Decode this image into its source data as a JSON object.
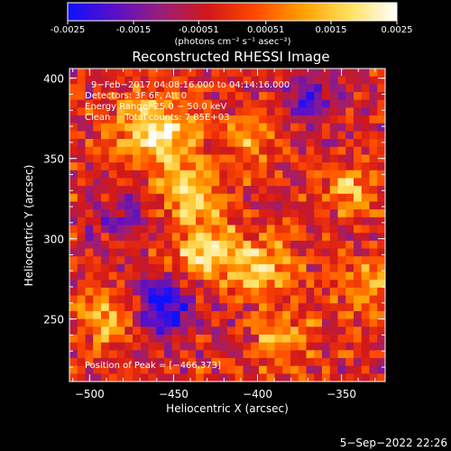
{
  "colorbar": {
    "ticks": [
      "-0.0025",
      "-0.0015",
      "-0.00051",
      "0.00051",
      "0.0015",
      "0.0025"
    ],
    "tick_values": [
      -0.0025,
      -0.0015,
      -0.00051,
      0.00051,
      0.0015,
      0.0025
    ],
    "range": [
      -0.0025,
      0.0025
    ],
    "units_label": "(photons cm⁻² s⁻¹ asec⁻²)",
    "colors": [
      "#1010ff",
      "#5a10c8",
      "#9a1e78",
      "#d21818",
      "#ff4a00",
      "#ffa000",
      "#ffe060",
      "#ffffff"
    ]
  },
  "chart_data": {
    "type": "heatmap",
    "title": "Reconstructed RHESSI Image",
    "xlabel": "Heliocentric X (arcsec)",
    "ylabel": "Heliocentric Y (arcsec)",
    "x_ticks": [
      "−500",
      "−450",
      "−400",
      "−350"
    ],
    "x_tick_values": [
      -500,
      -450,
      -400,
      -350
    ],
    "y_ticks": [
      "250",
      "300",
      "350",
      "400"
    ],
    "y_tick_values": [
      250,
      300,
      350,
      400
    ],
    "xlim": [
      -512,
      -324
    ],
    "ylim": [
      211,
      406
    ],
    "annotations": [
      "9−Feb−2017 04:08:16.000 to 04:14:16.000",
      "Detectors: 3F 6F, Att 0",
      "Energy Range: 25.0 − 50.0 keV",
      "Clean     Total counts: 7.85E+03"
    ],
    "peak_label": "Position of Peak = [−466,373]",
    "peak": [
      -466,
      373
    ],
    "blobs": [
      {
        "x": -460,
        "y": 368,
        "amp": 1.8,
        "sigma": 15
      },
      {
        "x": -440,
        "y": 330,
        "amp": 1.2,
        "sigma": 13
      },
      {
        "x": -430,
        "y": 292,
        "amp": 1.6,
        "sigma": 14
      },
      {
        "x": -395,
        "y": 283,
        "amp": 1.3,
        "sigma": 12
      },
      {
        "x": -400,
        "y": 364,
        "amp": 1.0,
        "sigma": 11
      },
      {
        "x": -345,
        "y": 332,
        "amp": 1.1,
        "sigma": 11
      },
      {
        "x": -335,
        "y": 272,
        "amp": 0.9,
        "sigma": 12
      },
      {
        "x": -490,
        "y": 250,
        "amp": 1.1,
        "sigma": 12
      },
      {
        "x": -385,
        "y": 238,
        "amp": 1.0,
        "sigma": 12
      },
      {
        "x": -455,
        "y": 258,
        "amp": -1.6,
        "sigma": 13
      },
      {
        "x": -370,
        "y": 388,
        "amp": -1.0,
        "sigma": 14
      },
      {
        "x": -480,
        "y": 312,
        "amp": -0.8,
        "sigma": 12
      }
    ]
  },
  "footer": {
    "date": "5−Sep−2022 22:26"
  }
}
